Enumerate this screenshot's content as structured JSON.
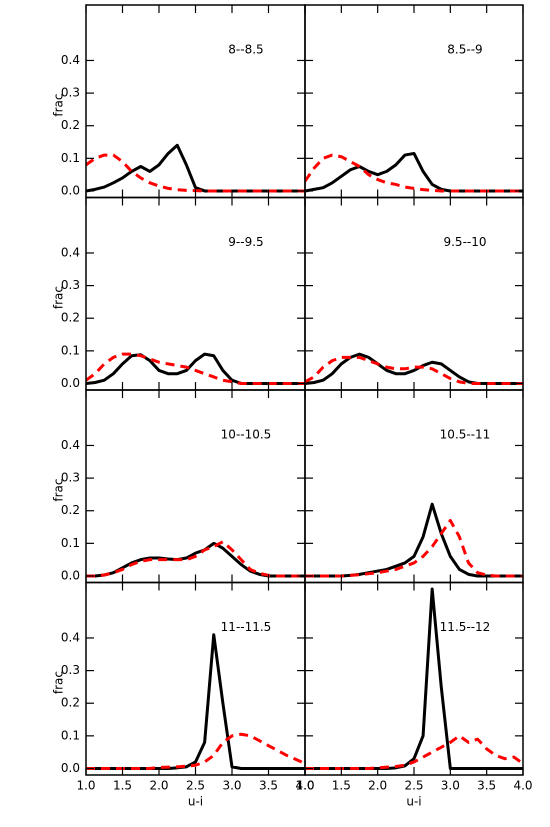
{
  "chart_data": [
    {
      "type": "line",
      "title": "8--8.5",
      "ylabel": "frac",
      "x": [
        1.0,
        1.125,
        1.25,
        1.375,
        1.5,
        1.625,
        1.75,
        1.875,
        2.0,
        2.125,
        2.25,
        2.375,
        2.5,
        2.625,
        2.75,
        2.875,
        3.0,
        3.125,
        3.25,
        3.375,
        3.5,
        3.625,
        3.75,
        3.875,
        4.0
      ],
      "series": [
        {
          "color": "#000000",
          "linestyle": "solid",
          "values": [
            0,
            0.005,
            0.012,
            0.025,
            0.04,
            0.06,
            0.075,
            0.06,
            0.08,
            0.115,
            0.14,
            0.08,
            0.01,
            0,
            0,
            0,
            0,
            0,
            0,
            0,
            0,
            0,
            0,
            0,
            0
          ]
        },
        {
          "color": "#ff0000",
          "linestyle": "dashed",
          "values": [
            0.08,
            0.1,
            0.11,
            0.11,
            0.09,
            0.06,
            0.04,
            0.025,
            0.015,
            0.008,
            0.004,
            0.002,
            0.001,
            0,
            0,
            0,
            0,
            0,
            0,
            0,
            0,
            0,
            0,
            0,
            0
          ]
        }
      ],
      "xlim": [
        1.0,
        4.0
      ],
      "ylim": [
        -0.02,
        0.57
      ],
      "xticks": [
        1,
        1.5,
        2,
        2.5,
        3,
        3.5,
        4
      ],
      "yticks": [
        {
          "value": 0,
          "label": "0.0"
        },
        0.1,
        0.2,
        0.3,
        0.4
      ]
    },
    {
      "type": "line",
      "title": "8.5--9",
      "x": [
        1.0,
        1.125,
        1.25,
        1.375,
        1.5,
        1.625,
        1.75,
        1.875,
        2.0,
        2.125,
        2.25,
        2.375,
        2.5,
        2.625,
        2.75,
        2.875,
        3.0,
        3.125,
        3.25,
        3.375,
        3.5,
        3.625,
        3.75,
        3.875,
        4.0
      ],
      "series": [
        {
          "color": "#000000",
          "linestyle": "solid",
          "values": [
            0,
            0.005,
            0.01,
            0.025,
            0.045,
            0.065,
            0.075,
            0.06,
            0.05,
            0.06,
            0.08,
            0.11,
            0.115,
            0.06,
            0.02,
            0.005,
            0,
            0,
            0,
            0,
            0,
            0,
            0,
            0,
            0
          ]
        },
        {
          "color": "#ff0000",
          "linestyle": "dashed",
          "values": [
            0.03,
            0.07,
            0.1,
            0.11,
            0.105,
            0.09,
            0.075,
            0.05,
            0.035,
            0.025,
            0.02,
            0.012,
            0.008,
            0.004,
            0.002,
            0,
            0,
            0,
            0,
            0,
            0,
            0,
            0,
            0,
            0
          ]
        }
      ],
      "xlim": [
        1.0,
        4.0
      ],
      "ylim": [
        -0.02,
        0.57
      ],
      "xticks": [
        1,
        1.5,
        2,
        2.5,
        3,
        3.5,
        4
      ],
      "yticks": [
        0,
        0.1,
        0.2,
        0.3,
        0.4
      ]
    },
    {
      "type": "line",
      "title": "9--9.5",
      "ylabel": "frac",
      "x": [
        1.0,
        1.125,
        1.25,
        1.375,
        1.5,
        1.625,
        1.75,
        1.875,
        2.0,
        2.125,
        2.25,
        2.375,
        2.5,
        2.625,
        2.75,
        2.875,
        3.0,
        3.125,
        3.25,
        3.375,
        3.5,
        3.625,
        3.75,
        3.875,
        4.0
      ],
      "series": [
        {
          "color": "#000000",
          "linestyle": "solid",
          "values": [
            0,
            0.003,
            0.01,
            0.03,
            0.06,
            0.085,
            0.088,
            0.07,
            0.04,
            0.03,
            0.03,
            0.04,
            0.07,
            0.09,
            0.085,
            0.04,
            0.01,
            0,
            0,
            0,
            0,
            0,
            0,
            0,
            0
          ]
        },
        {
          "color": "#ff0000",
          "linestyle": "dashed",
          "values": [
            0.01,
            0.03,
            0.06,
            0.08,
            0.09,
            0.09,
            0.085,
            0.075,
            0.065,
            0.06,
            0.055,
            0.05,
            0.04,
            0.03,
            0.02,
            0.01,
            0.005,
            0,
            0,
            0,
            0,
            0,
            0,
            0,
            0
          ]
        }
      ],
      "xlim": [
        1.0,
        4.0
      ],
      "ylim": [
        -0.02,
        0.57
      ],
      "xticks": [
        1,
        1.5,
        2,
        2.5,
        3,
        3.5,
        4
      ],
      "yticks": [
        {
          "value": 0,
          "label": "0.0"
        },
        0.1,
        0.2,
        0.3,
        0.4
      ]
    },
    {
      "type": "line",
      "title": "9.5--10",
      "x": [
        1.0,
        1.125,
        1.25,
        1.375,
        1.5,
        1.625,
        1.75,
        1.875,
        2.0,
        2.125,
        2.25,
        2.375,
        2.5,
        2.625,
        2.75,
        2.875,
        3.0,
        3.125,
        3.25,
        3.375,
        3.5,
        3.625,
        3.75,
        3.875,
        4.0
      ],
      "series": [
        {
          "color": "#000000",
          "linestyle": "solid",
          "values": [
            0,
            0.003,
            0.01,
            0.03,
            0.06,
            0.08,
            0.09,
            0.08,
            0.06,
            0.04,
            0.03,
            0.03,
            0.04,
            0.055,
            0.065,
            0.06,
            0.04,
            0.02,
            0.005,
            0,
            0,
            0,
            0,
            0,
            0
          ]
        },
        {
          "color": "#ff0000",
          "linestyle": "dashed",
          "values": [
            0.005,
            0.02,
            0.05,
            0.07,
            0.08,
            0.08,
            0.08,
            0.07,
            0.06,
            0.05,
            0.045,
            0.045,
            0.05,
            0.05,
            0.045,
            0.03,
            0.015,
            0.005,
            0,
            0,
            0,
            0,
            0,
            0,
            0
          ]
        }
      ],
      "xlim": [
        1.0,
        4.0
      ],
      "ylim": [
        -0.02,
        0.57
      ],
      "xticks": [
        1,
        1.5,
        2,
        2.5,
        3,
        3.5,
        4
      ],
      "yticks": [
        0,
        0.1,
        0.2,
        0.3,
        0.4
      ]
    },
    {
      "type": "line",
      "title": "10--10.5",
      "ylabel": "frac",
      "x": [
        1.0,
        1.125,
        1.25,
        1.375,
        1.5,
        1.625,
        1.75,
        1.875,
        2.0,
        2.125,
        2.25,
        2.375,
        2.5,
        2.625,
        2.75,
        2.875,
        3.0,
        3.125,
        3.25,
        3.375,
        3.5,
        3.625,
        3.75,
        3.875,
        4.0
      ],
      "series": [
        {
          "color": "#000000",
          "linestyle": "solid",
          "values": [
            0,
            0,
            0.003,
            0.01,
            0.025,
            0.04,
            0.05,
            0.055,
            0.055,
            0.052,
            0.05,
            0.055,
            0.07,
            0.08,
            0.1,
            0.085,
            0.06,
            0.035,
            0.015,
            0.005,
            0,
            0,
            0,
            0,
            0
          ]
        },
        {
          "color": "#ff0000",
          "linestyle": "dashed",
          "values": [
            0,
            0,
            0.003,
            0.01,
            0.02,
            0.035,
            0.045,
            0.05,
            0.05,
            0.05,
            0.05,
            0.05,
            0.06,
            0.08,
            0.09,
            0.105,
            0.08,
            0.05,
            0.02,
            0.008,
            0.002,
            0,
            0,
            0,
            0
          ]
        }
      ],
      "xlim": [
        1.0,
        4.0
      ],
      "ylim": [
        -0.02,
        0.57
      ],
      "xticks": [
        1,
        1.5,
        2,
        2.5,
        3,
        3.5,
        4
      ],
      "yticks": [
        {
          "value": 0,
          "label": "0.0"
        },
        0.1,
        0.2,
        0.3,
        0.4
      ]
    },
    {
      "type": "line",
      "title": "10.5--11",
      "x": [
        1.0,
        1.125,
        1.25,
        1.375,
        1.5,
        1.625,
        1.75,
        1.875,
        2.0,
        2.125,
        2.25,
        2.375,
        2.5,
        2.625,
        2.75,
        2.875,
        3.0,
        3.125,
        3.25,
        3.375,
        3.5,
        3.625,
        3.75,
        3.875,
        4.0
      ],
      "series": [
        {
          "color": "#000000",
          "linestyle": "solid",
          "values": [
            0,
            0,
            0,
            0,
            0,
            0.002,
            0.005,
            0.01,
            0.015,
            0.02,
            0.03,
            0.04,
            0.06,
            0.12,
            0.22,
            0.13,
            0.06,
            0.02,
            0.005,
            0,
            0,
            0,
            0,
            0,
            0
          ]
        },
        {
          "color": "#ff0000",
          "linestyle": "dashed",
          "values": [
            0,
            0,
            0,
            0,
            0,
            0.002,
            0.004,
            0.007,
            0.01,
            0.015,
            0.02,
            0.03,
            0.04,
            0.06,
            0.09,
            0.13,
            0.17,
            0.12,
            0.04,
            0.01,
            0.003,
            0,
            0,
            0,
            0
          ]
        }
      ],
      "xlim": [
        1.0,
        4.0
      ],
      "ylim": [
        -0.02,
        0.57
      ],
      "xticks": [
        1,
        1.5,
        2,
        2.5,
        3,
        3.5,
        4
      ],
      "yticks": [
        0,
        0.1,
        0.2,
        0.3,
        0.4
      ]
    },
    {
      "type": "line",
      "title": "11--11.5",
      "ylabel": "frac",
      "xlabel": "u-i",
      "x": [
        1.0,
        1.125,
        1.25,
        1.375,
        1.5,
        1.625,
        1.75,
        1.875,
        2.0,
        2.125,
        2.25,
        2.375,
        2.5,
        2.625,
        2.75,
        2.875,
        3.0,
        3.125,
        3.25,
        3.375,
        3.5,
        3.625,
        3.75,
        3.875,
        4.0
      ],
      "series": [
        {
          "color": "#000000",
          "linestyle": "solid",
          "values": [
            0,
            0,
            0,
            0,
            0,
            0,
            0,
            0,
            0,
            0,
            0.002,
            0.005,
            0.02,
            0.08,
            0.41,
            0.2,
            0.005,
            0,
            0,
            0,
            0,
            0,
            0,
            0,
            0
          ]
        },
        {
          "color": "#ff0000",
          "linestyle": "dashed",
          "values": [
            0,
            0,
            0,
            0,
            0,
            0,
            0,
            0,
            0.003,
            0.004,
            0.005,
            0.007,
            0.01,
            0.02,
            0.04,
            0.08,
            0.1,
            0.105,
            0.1,
            0.085,
            0.07,
            0.055,
            0.04,
            0.028,
            0.015
          ]
        }
      ],
      "xlim": [
        1.0,
        4.0
      ],
      "ylim": [
        -0.02,
        0.57
      ],
      "xticks": [
        {
          "value": 1,
          "label": "1.0"
        },
        1.5,
        {
          "value": 2,
          "label": "2.0"
        },
        2.5,
        {
          "value": 3,
          "label": "3.0"
        },
        3.5,
        {
          "value": 4,
          "label": "4.0"
        }
      ],
      "yticks": [
        {
          "value": 0,
          "label": "0.0"
        },
        0.1,
        0.2,
        0.3,
        0.4
      ]
    },
    {
      "type": "line",
      "title": "11.5--12",
      "xlabel": "u-i",
      "x": [
        1.0,
        1.125,
        1.25,
        1.375,
        1.5,
        1.625,
        1.75,
        1.875,
        2.0,
        2.125,
        2.25,
        2.375,
        2.5,
        2.625,
        2.75,
        2.875,
        3.0,
        3.125,
        3.25,
        3.375,
        3.5,
        3.625,
        3.75,
        3.875,
        4.0
      ],
      "series": [
        {
          "color": "#000000",
          "linestyle": "solid",
          "values": [
            0,
            0,
            0,
            0,
            0,
            0,
            0,
            0,
            0,
            0,
            0.002,
            0.008,
            0.03,
            0.1,
            0.55,
            0.25,
            0,
            0,
            0,
            0,
            0,
            0,
            0,
            0,
            0
          ]
        },
        {
          "color": "#ff0000",
          "linestyle": "dashed",
          "values": [
            0,
            0,
            0,
            0,
            0,
            0,
            0,
            0,
            0.002,
            0.004,
            0.006,
            0.01,
            0.02,
            0.035,
            0.05,
            0.065,
            0.08,
            0.1,
            0.08,
            0.09,
            0.06,
            0.04,
            0.03,
            0.035,
            0.015
          ]
        }
      ],
      "xlim": [
        1.0,
        4.0
      ],
      "ylim": [
        -0.02,
        0.57
      ],
      "xticks": [
        {
          "value": 1,
          "label": "1.0"
        },
        1.5,
        {
          "value": 2,
          "label": "2.0"
        },
        2.5,
        {
          "value": 3,
          "label": "3.0"
        },
        3.5,
        {
          "value": 4,
          "label": "4.0"
        }
      ],
      "yticks": [
        0,
        0.1,
        0.2,
        0.3,
        0.4
      ]
    }
  ]
}
